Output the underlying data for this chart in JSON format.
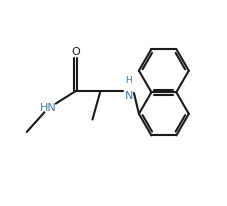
{
  "bg_color": "#ffffff",
  "bond_color": "#1a1a1a",
  "text_color": "#1a1a1a",
  "nh_color": "#4477aa",
  "line_width": 1.5,
  "font_size": 8.0,
  "figsize": [
    2.28,
    2.07
  ],
  "dpi": 100,
  "xlim": [
    -0.5,
    9.5
  ],
  "ylim": [
    0.5,
    9.5
  ]
}
